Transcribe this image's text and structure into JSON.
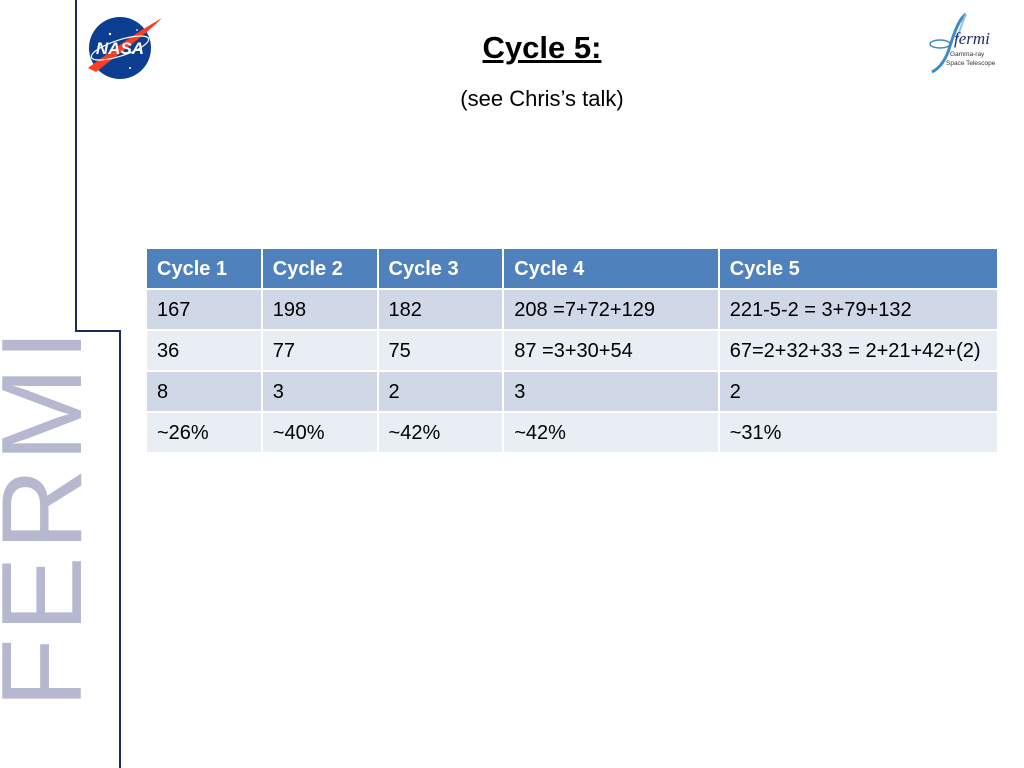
{
  "slide": {
    "title": "Cycle 5:",
    "subtitle": "(see Chris’s talk)",
    "side_word": "FERMI"
  },
  "logos": {
    "nasa": {
      "text": "NASA"
    },
    "fermi": {
      "text": "fermi",
      "line1": "Gamma-ray",
      "line2": "Space Telescope"
    }
  },
  "table": {
    "headers": [
      "Cycle 1",
      "Cycle 2",
      "Cycle 3",
      "Cycle 4",
      "Cycle 5"
    ],
    "rows": [
      [
        "167",
        "198",
        "182",
        "208 =7+72+129",
        "221-5-2 = 3+79+132"
      ],
      [
        "36",
        "77",
        "75",
        "87 =3+30+54",
        "67=2+32+33 = 2+21+42+(2)"
      ],
      [
        "8",
        "3",
        "2",
        "3",
        "2"
      ],
      [
        "~26%",
        "~40%",
        "~42%",
        "~42%",
        "~31%"
      ]
    ]
  },
  "colors": {
    "header": "#4f81bd",
    "row_dark": "#d0d8e8",
    "row_light": "#e9edf4",
    "side_text": "#b6b8cf",
    "rule": "#1f2a5c"
  }
}
